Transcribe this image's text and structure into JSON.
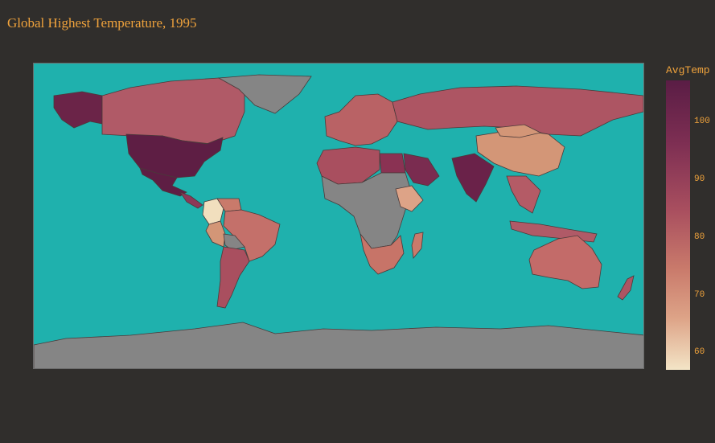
{
  "title": "Global Highest Temperature, 1995",
  "colorbar": {
    "title": "AvgTemp",
    "ticks": [
      "100",
      "90",
      "80",
      "70",
      "60"
    ]
  },
  "colors": {
    "ocean": "#1fb1ad",
    "no_data": "#858585",
    "background": "#302e2c",
    "text_accent": "#f0a33c",
    "scale": [
      "#f3e4c6",
      "#dda387",
      "#c97a6b",
      "#a94f5f",
      "#7e2f53",
      "#5a1d45"
    ]
  },
  "regions": [
    {
      "name": "Alaska",
      "color": "#6b2448"
    },
    {
      "name": "Canada",
      "color": "#b05a67"
    },
    {
      "name": "Greenland",
      "color": "#858585"
    },
    {
      "name": "United States",
      "color": "#5e1e44"
    },
    {
      "name": "Mexico",
      "color": "#5e1e44"
    },
    {
      "name": "Central America",
      "color": "#8d3757"
    },
    {
      "name": "Colombia",
      "color": "#f1dfbe"
    },
    {
      "name": "Venezuela",
      "color": "#c97a6b"
    },
    {
      "name": "Brazil",
      "color": "#c4706a"
    },
    {
      "name": "Peru",
      "color": "#d39677"
    },
    {
      "name": "Bolivia",
      "color": "#858585"
    },
    {
      "name": "Argentina",
      "color": "#a94f5f"
    },
    {
      "name": "Europe",
      "color": "#b96265"
    },
    {
      "name": "Russia",
      "color": "#ad5563"
    },
    {
      "name": "North Africa",
      "color": "#a94f5f"
    },
    {
      "name": "Egypt",
      "color": "#8a3253"
    },
    {
      "name": "Arabia",
      "color": "#7a2c50"
    },
    {
      "name": "India",
      "color": "#6a2249"
    },
    {
      "name": "China",
      "color": "#d39677"
    },
    {
      "name": "Mongolia",
      "color": "#d39677"
    },
    {
      "name": "Southeast Asia",
      "color": "#b45b66"
    },
    {
      "name": "Indonesia",
      "color": "#b05a67"
    },
    {
      "name": "Australia",
      "color": "#c36b69"
    },
    {
      "name": "New Zealand",
      "color": "#ad5563"
    },
    {
      "name": "Central Africa",
      "color": "#858585"
    },
    {
      "name": "Ethiopia",
      "color": "#dda387"
    },
    {
      "name": "Southern Africa",
      "color": "#c77468"
    },
    {
      "name": "Madagascar",
      "color": "#c97a6b"
    },
    {
      "name": "Antarctica",
      "color": "#858585"
    }
  ]
}
